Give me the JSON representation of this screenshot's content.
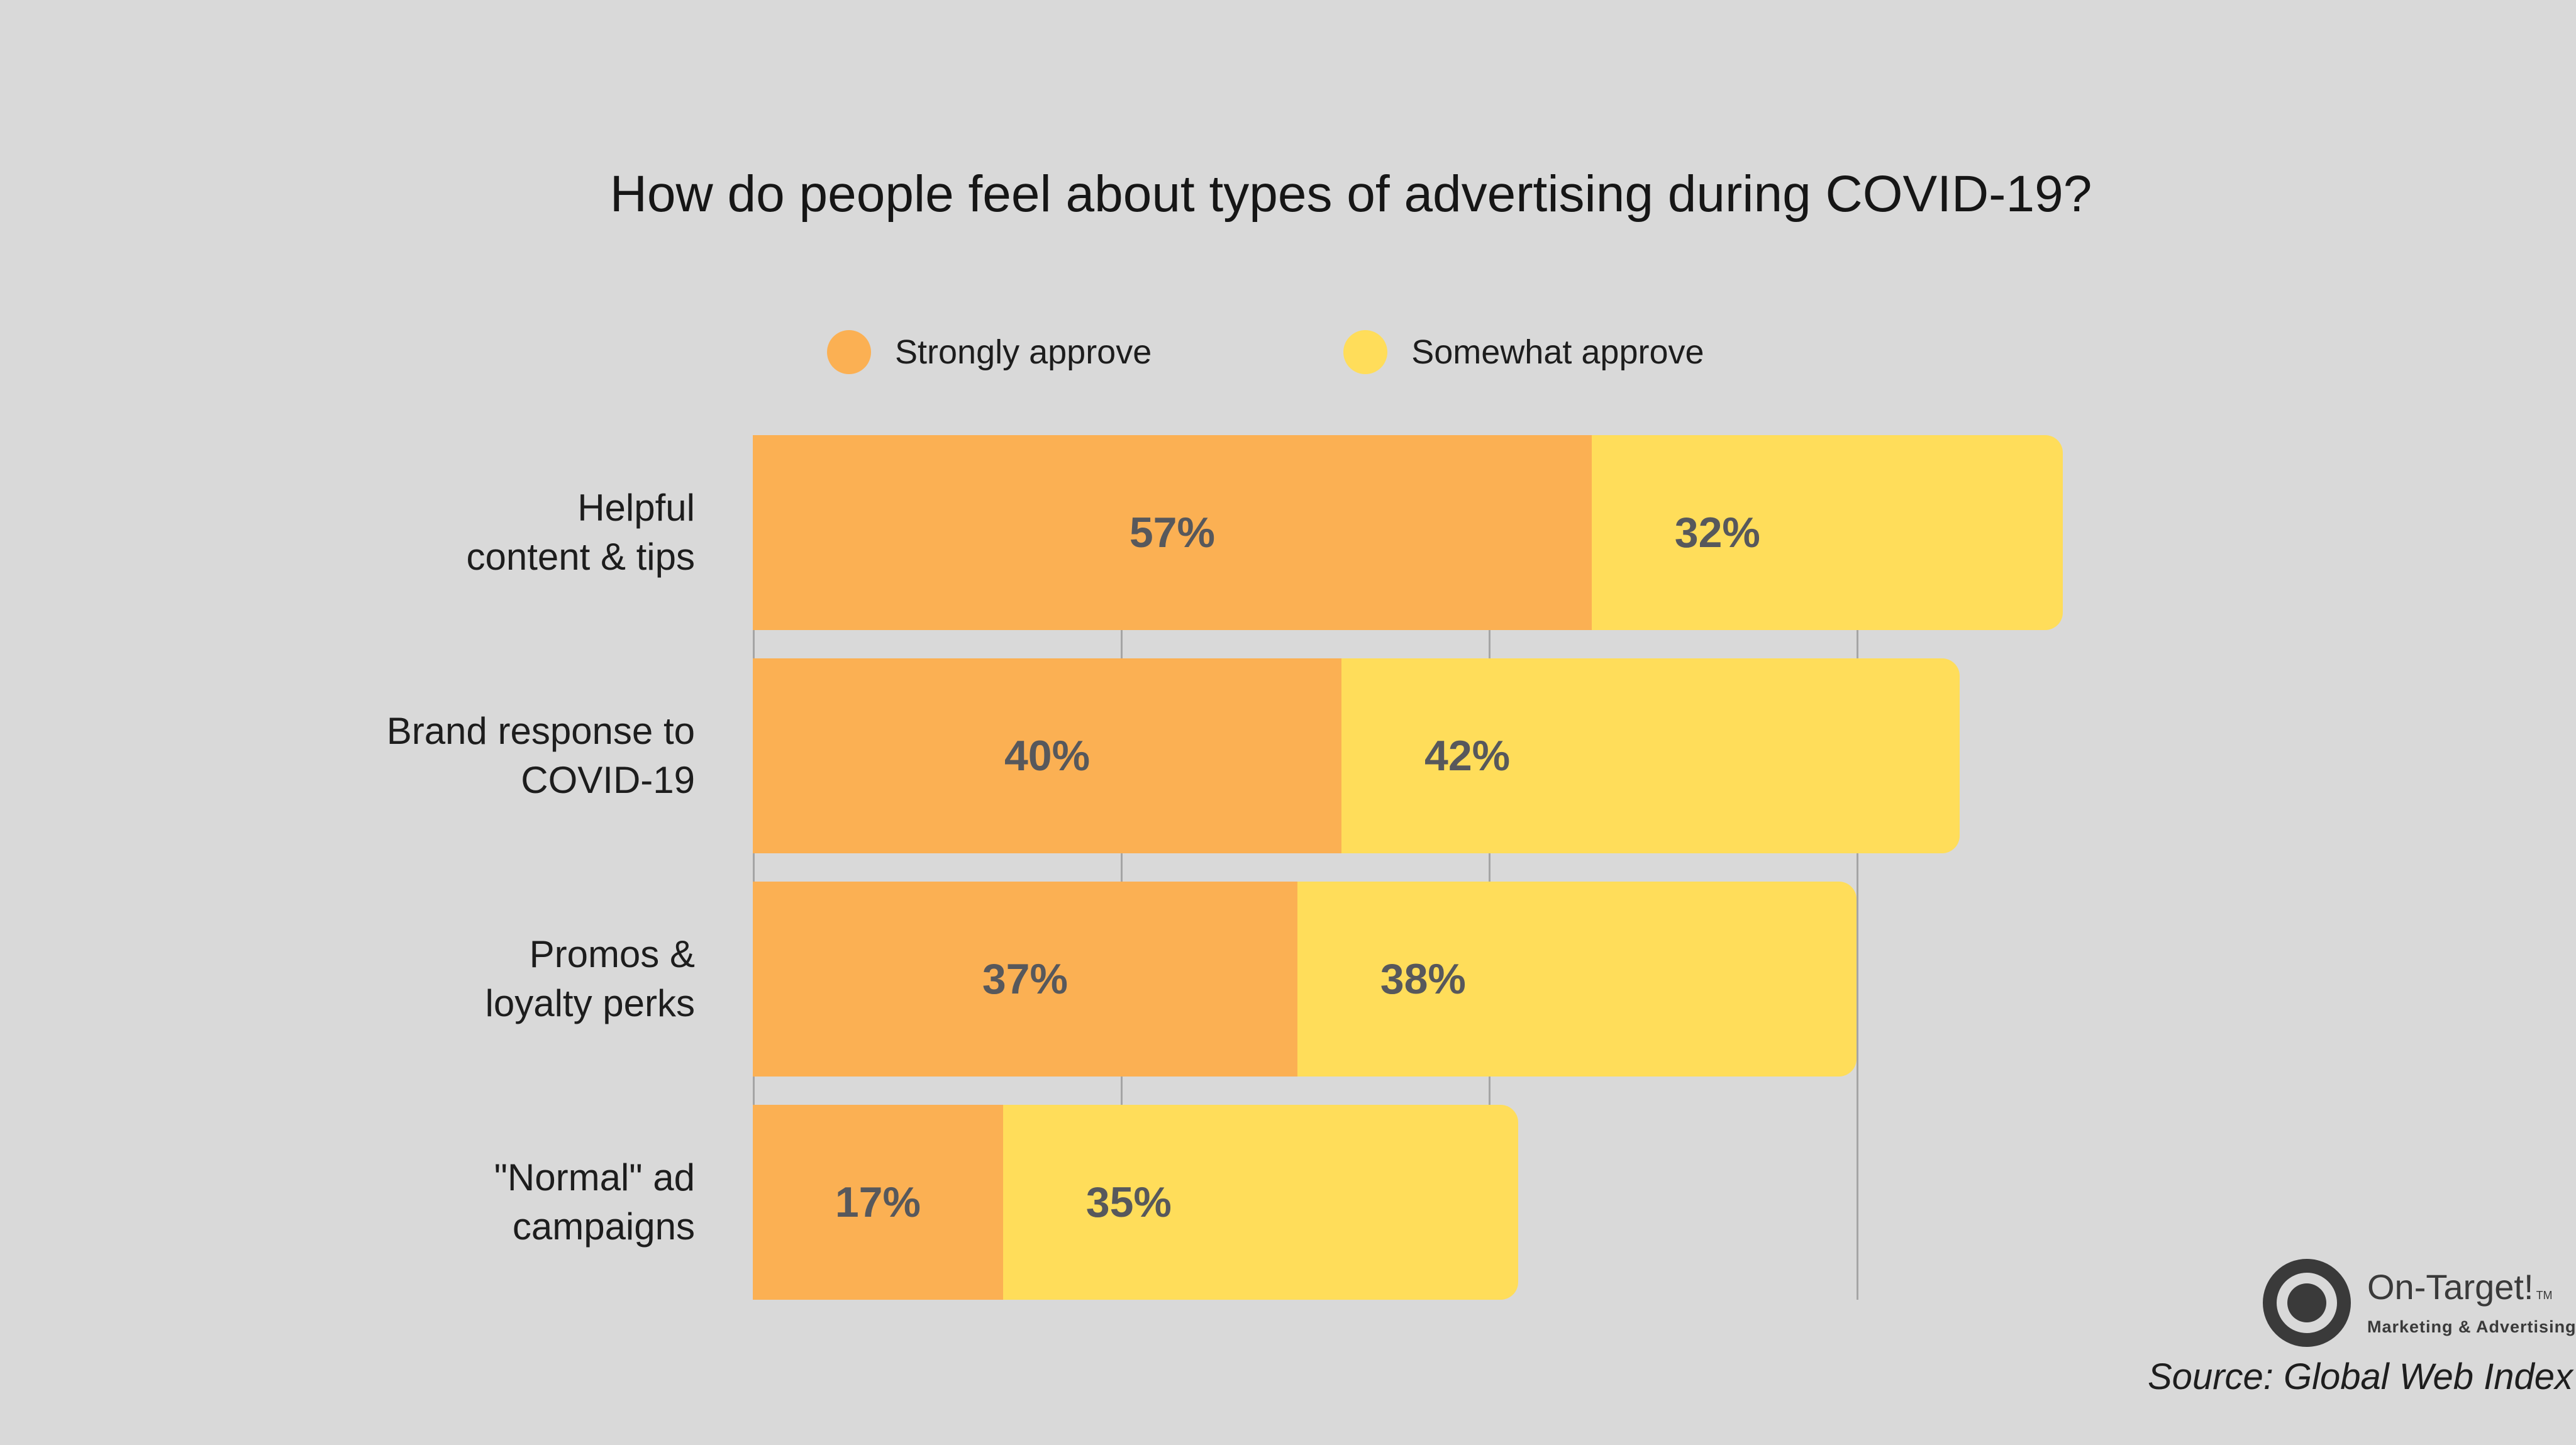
{
  "chart_data": {
    "type": "bar",
    "orientation": "horizontal",
    "stacked": true,
    "title": "How do people feel about types of advertising during COVID-19?",
    "xlabel": "",
    "ylabel": "",
    "xlim": [
      0,
      100
    ],
    "value_suffix": "%",
    "gridlines_pct": [
      0,
      25,
      50,
      75
    ],
    "legend_position": "top",
    "categories": [
      "Helpful content & tips",
      "Brand response to COVID-19",
      "Promos & loyalty perks",
      "\"Normal\" ad campaigns"
    ],
    "category_line_breaks": [
      [
        "Helpful",
        "content & tips"
      ],
      [
        "Brand response to",
        "COVID-19"
      ],
      [
        "Promos &",
        "loyalty perks"
      ],
      [
        "\"Normal\" ad",
        "campaigns"
      ]
    ],
    "series": [
      {
        "name": "Strongly approve",
        "color": "#FBB053",
        "values": [
          57,
          40,
          37,
          17
        ]
      },
      {
        "name": "Somewhat approve",
        "color": "#FFDD5A",
        "values": [
          32,
          42,
          38,
          35
        ]
      }
    ]
  },
  "colors": {
    "background": "#D9D9D9",
    "gridline": "#A5A5A5",
    "value_text": "#57585C",
    "label_text": "#1D1D1D",
    "logo": "#3A3A3A"
  },
  "footer": {
    "source": "Source: Global Web Index",
    "logo": {
      "name": "On-Target!",
      "trademark": "TM",
      "tagline": "Marketing & Advertising"
    }
  }
}
